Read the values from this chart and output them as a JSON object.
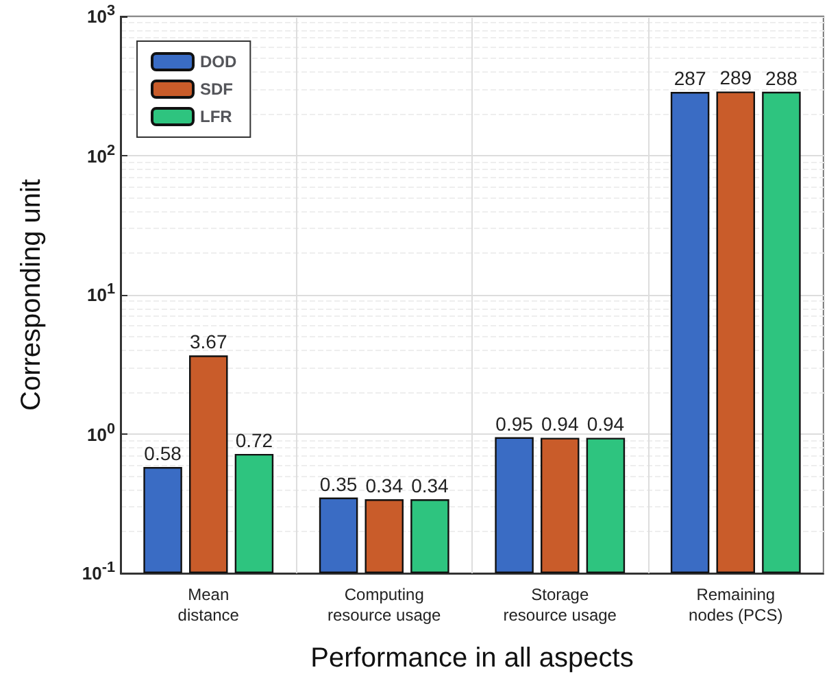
{
  "chart_data": {
    "type": "bar",
    "xlabel": "Performance in all aspects",
    "ylabel": "Corresponding unit",
    "categories": [
      "Mean\ndistance",
      "Computing\nresource usage",
      "Storage\nresource usage",
      "Remaining\nnodes (PCS)"
    ],
    "series": [
      {
        "name": "DOD",
        "color": "#3a6cc4",
        "values": [
          0.58,
          0.35,
          0.95,
          287
        ]
      },
      {
        "name": "SDF",
        "color": "#c95c2a",
        "values": [
          3.67,
          0.34,
          0.94,
          289
        ]
      },
      {
        "name": "LFR",
        "color": "#2ec47f",
        "values": [
          0.72,
          0.34,
          0.94,
          288
        ]
      }
    ],
    "log": "y",
    "ylim": [
      0.1,
      1000
    ],
    "yticks": [
      {
        "value": 0.1,
        "label": "10$^{-1}$"
      },
      {
        "value": 1,
        "label": "10$^{0}$"
      },
      {
        "value": 10,
        "label": "10$^{1}$"
      },
      {
        "value": 100,
        "label": "10$^{2}$"
      },
      {
        "value": 1000,
        "label": "10$^{3}$"
      }
    ],
    "grid": true,
    "legend": "top left",
    "data_labels": true
  }
}
